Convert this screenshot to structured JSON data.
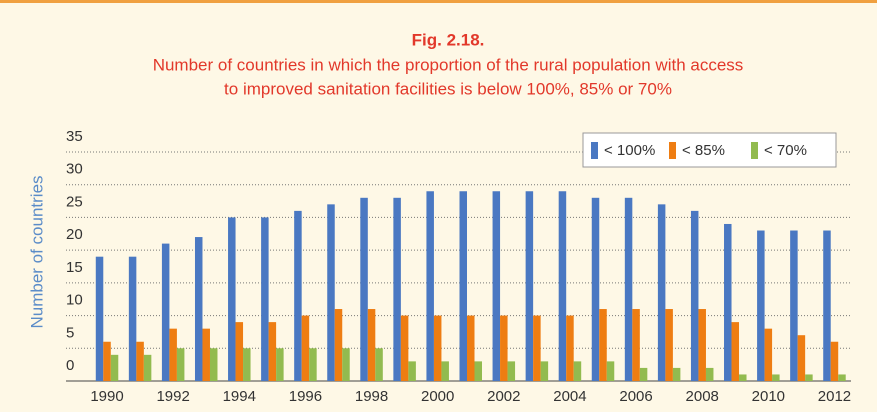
{
  "chart_data": {
    "type": "bar",
    "title": "Fig. 2.18.",
    "subtitle": [
      "Number of countries in which the proportion of the rural population with access",
      "to improved sanitation facilities is below 100%, 85% or 70%"
    ],
    "y_label": "Number of countries",
    "categories": [
      "1990",
      null,
      "1992",
      null,
      "1994",
      null,
      "1996",
      null,
      "1998",
      null,
      "2000",
      null,
      "2002",
      null,
      "2004",
      null,
      "2006",
      null,
      "2008",
      null,
      "2010",
      null,
      "2012"
    ],
    "series": [
      {
        "name": "< 100%",
        "color": "#4a78c2",
        "values": [
          19,
          19,
          21,
          22,
          25,
          25,
          26,
          27,
          28,
          28,
          29,
          29,
          29,
          29,
          29,
          28,
          28,
          27,
          26,
          24,
          23,
          23,
          23
        ]
      },
      {
        "name": "< 85%",
        "color": "#ee7d12",
        "values": [
          6,
          6,
          8,
          8,
          9,
          9,
          10,
          11,
          11,
          10,
          10,
          10,
          10,
          10,
          10,
          11,
          11,
          11,
          11,
          9,
          8,
          7,
          6
        ]
      },
      {
        "name": "< 70%",
        "color": "#92bb4f",
        "values": [
          4,
          4,
          5,
          5,
          5,
          5,
          5,
          5,
          5,
          3,
          3,
          3,
          3,
          3,
          3,
          3,
          2,
          2,
          2,
          1,
          1,
          1,
          1
        ]
      }
    ],
    "ylim": [
      0,
      35
    ],
    "yticks": [
      0,
      5,
      10,
      15,
      20,
      25,
      30,
      35
    ],
    "grid": true,
    "legend": "top-right"
  }
}
